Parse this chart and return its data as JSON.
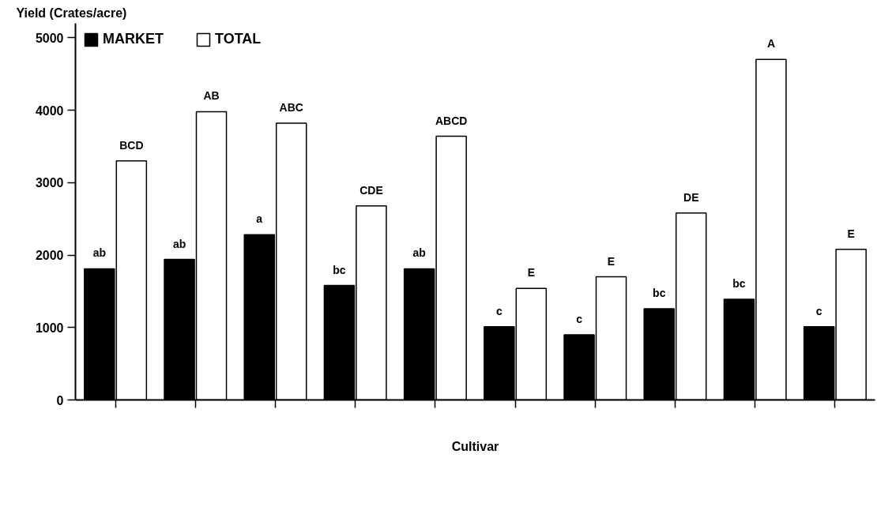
{
  "chart_data": {
    "type": "bar",
    "xlabel": "Cultivar",
    "ylabel": "Yield (Crates/acre)",
    "categories": [
      null,
      null,
      null,
      null,
      null,
      null,
      null,
      null,
      null,
      null
    ],
    "series": [
      {
        "name": "MARKET",
        "color": "#000000",
        "values": [
          1810,
          1940,
          2280,
          1580,
          1810,
          1010,
          900,
          1260,
          1390,
          1010
        ],
        "value_labels": [
          "ab",
          "ab",
          "a",
          "bc",
          "ab",
          "c",
          "c",
          "bc",
          "bc",
          "c"
        ]
      },
      {
        "name": "TOTAL",
        "color": "#ffffff",
        "values": [
          3300,
          3980,
          3820,
          2680,
          3640,
          1540,
          1700,
          2580,
          4700,
          2080
        ],
        "value_labels": [
          "BCD",
          "AB",
          "ABC",
          "CDE",
          "ABCD",
          "E",
          "E",
          "DE",
          "A",
          "E"
        ]
      }
    ],
    "ylim": [
      0,
      5200
    ],
    "yticks": [
      0,
      1000,
      2000,
      3000,
      4000,
      5000
    ],
    "grid": false,
    "legend": "top left",
    "tick_labels": "y"
  }
}
